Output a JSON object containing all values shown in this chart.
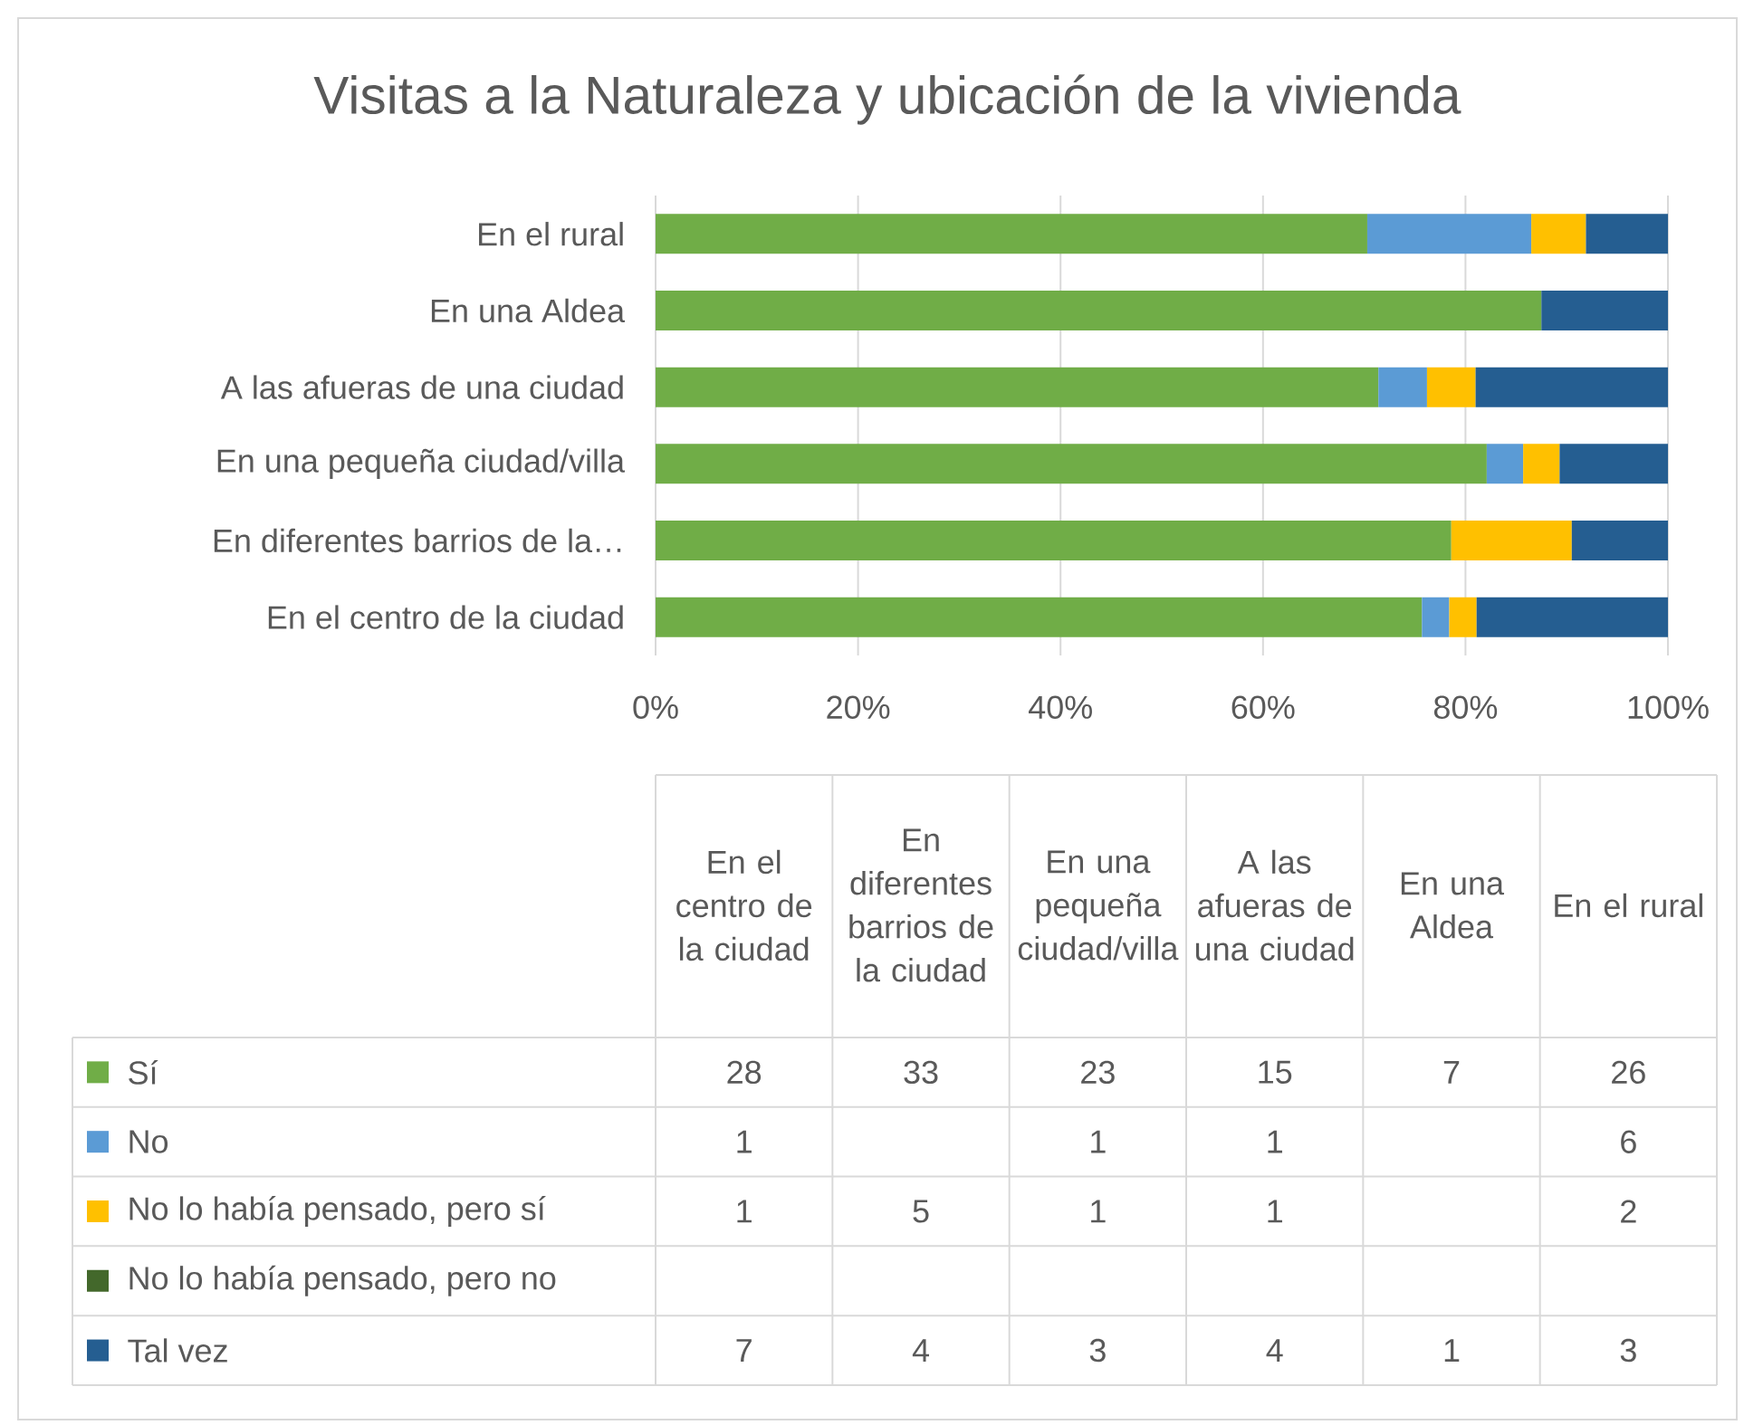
{
  "chart_data": [
    {
      "type": "bar",
      "orientation": "horizontal",
      "stacked": true,
      "title": "Visitas a la  Naturaleza y ubicación de la vivienda",
      "categories": [
        "En el rural",
        "En una Aldea",
        "A las afueras de una ciudad",
        "En una pequeña ciudad/villa",
        "En diferentes barrios de la…",
        "En el centro de la ciudad"
      ],
      "series": [
        {
          "color": "#70ad47",
          "values": [
            70.3,
            87.5,
            71.4,
            82.1,
            78.6,
            75.7
          ]
        },
        {
          "color": "#5b9bd5",
          "values": [
            16.2,
            null,
            4.8,
            3.6,
            null,
            2.7
          ]
        },
        {
          "color": "#ffc000",
          "values": [
            5.4,
            null,
            4.8,
            3.6,
            11.9,
            2.7
          ]
        },
        {
          "color": "#43682b",
          "values": [
            null,
            null,
            null,
            null,
            null,
            null
          ]
        },
        {
          "color": "#255e91",
          "values": [
            8.1,
            12.5,
            19.0,
            10.7,
            9.5,
            18.9
          ]
        }
      ],
      "xlim": [
        0,
        100
      ],
      "xticks": [
        {
          "value": 0,
          "label": "0%"
        },
        {
          "value": 20,
          "label": "20%"
        },
        {
          "value": 40,
          "label": "40%"
        },
        {
          "value": 60,
          "label": "60%"
        },
        {
          "value": 80,
          "label": "80%"
        },
        {
          "value": 100,
          "label": "100%"
        }
      ],
      "grid": "x"
    },
    {
      "type": "other",
      "categories": [
        "En el centro de la ciudad",
        "En diferentes barrios de la ciudad",
        "En una pequeña ciudad/villa",
        "A las afueras de una ciudad",
        "En una Aldea",
        "En el rural"
      ],
      "series": [
        {
          "name": "Sí",
          "color": "#70ad47",
          "values": [
            28,
            33,
            23,
            15,
            7,
            26
          ]
        },
        {
          "name": "No",
          "color": "#5b9bd5",
          "values": [
            1,
            null,
            1,
            1,
            null,
            6
          ]
        },
        {
          "name": "No lo había pensado, pero sí",
          "color": "#ffc000",
          "values": [
            1,
            5,
            1,
            1,
            null,
            2
          ]
        },
        {
          "name": "No lo había pensado, pero no",
          "color": "#43682b",
          "values": [
            null,
            null,
            null,
            null,
            null,
            null
          ]
        },
        {
          "name": "Tal vez",
          "color": "#255e91",
          "values": [
            7,
            4,
            3,
            4,
            1,
            3
          ]
        }
      ],
      "data_labels": true,
      "legend": "left"
    }
  ]
}
